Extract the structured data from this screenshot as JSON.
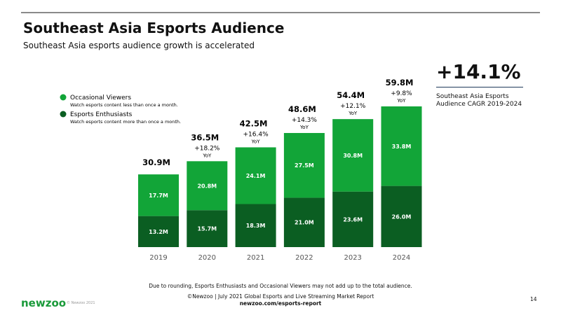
{
  "header": {
    "title": "Southeast Asia Esports Audience",
    "subtitle": "Southeast Asia esports audience growth is accelerated"
  },
  "chart_data": {
    "type": "bar",
    "stacked": true,
    "categories": [
      "2019",
      "2020",
      "2021",
      "2022",
      "2023",
      "2024"
    ],
    "series": [
      {
        "name": "Esports Enthusiasts",
        "description": "Watch esports content more than once a month.",
        "color": "#0b5e22",
        "values": [
          13.2,
          15.7,
          18.3,
          21.0,
          23.6,
          26.0
        ],
        "value_labels": [
          "13.2M",
          "15.7M",
          "18.3M",
          "21.0M",
          "23.6M",
          "26.0M"
        ]
      },
      {
        "name": "Occasional Viewers",
        "description": "Watch esports content less than once a month.",
        "color": "#12a538",
        "values": [
          17.7,
          20.8,
          24.1,
          27.5,
          30.8,
          33.8
        ],
        "value_labels": [
          "17.7M",
          "20.8M",
          "24.1M",
          "27.5M",
          "30.8M",
          "33.8M"
        ]
      }
    ],
    "totals": {
      "values": [
        30.9,
        36.5,
        42.5,
        48.6,
        54.4,
        59.8
      ],
      "value_labels": [
        "30.9M",
        "36.5M",
        "42.5M",
        "48.6M",
        "54.4M",
        "59.8M"
      ]
    },
    "yoy": {
      "label": "YoY",
      "values": [
        null,
        18.2,
        16.4,
        14.3,
        12.1,
        9.8
      ],
      "value_labels": [
        null,
        "+18.2%",
        "+16.4%",
        "+14.3%",
        "+12.1%",
        "+9.8%"
      ]
    }
  },
  "cagr": {
    "value": 14.1,
    "label": "+14.1%",
    "caption": "Southeast Asia Esports Audience CAGR 2019-2024"
  },
  "footnote": "Due to rounding, Esports Enthusiasts and Occasional Viewers may not add up to the total audience.",
  "source": {
    "line1": "©Newzoo | July 2021 Global Esports and Live Streaming Market Report",
    "line2": "newzoo.com/esports-report"
  },
  "footer": {
    "logo": "newzoo",
    "copyright": "© Newzoo 2021",
    "page": "14"
  }
}
